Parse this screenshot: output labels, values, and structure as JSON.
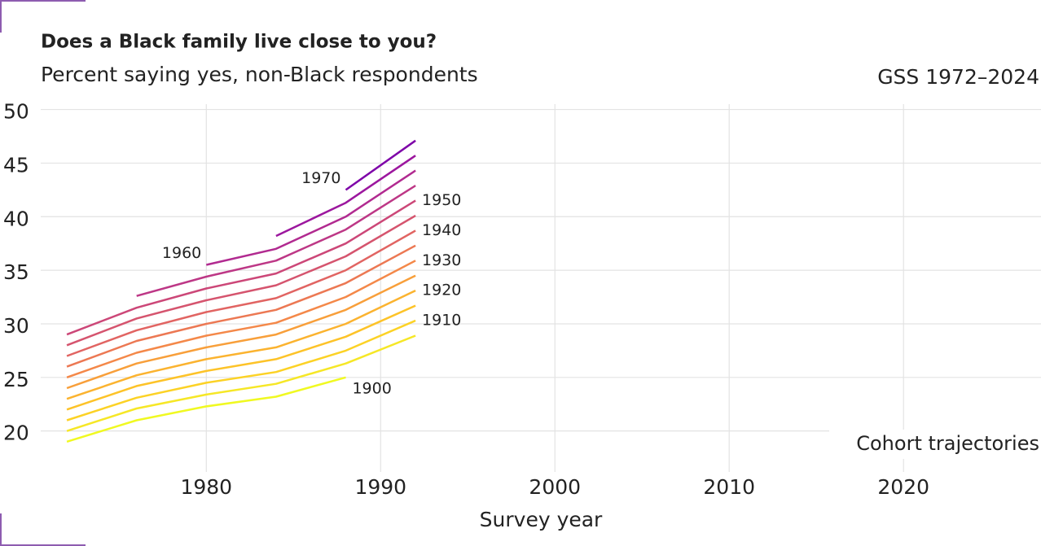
{
  "chart_data": {
    "type": "line",
    "title": "Does a Black family live close to you?",
    "subtitle": "Percent saying yes, non-Black respondents",
    "source": "GSS 1972–2024",
    "caption": "Cohort trajectories",
    "x_label": "Survey year",
    "x": [
      1972,
      1976,
      1980,
      1984,
      1988,
      1992
    ],
    "xlim": [
      1970.5,
      2027
    ],
    "xticks": [
      1980,
      1990,
      2000,
      2010,
      2020
    ],
    "ylim": [
      18,
      50.5
    ],
    "yticks": [
      20,
      25,
      30,
      35,
      40,
      45,
      50
    ],
    "grid": true,
    "series": [
      {
        "name": "1900",
        "color": "#f0f921",
        "values": [
          19,
          21,
          22.3,
          23.2,
          25,
          null
        ]
      },
      {
        "color": "#f6e726",
        "values": [
          20,
          22.1,
          23.4,
          24.4,
          26.3,
          28.9
        ]
      },
      {
        "name": "1910",
        "color": "#fcd225",
        "values": [
          21,
          23.1,
          24.5,
          25.5,
          27.5,
          30.3
        ]
      },
      {
        "color": "#fdc328",
        "values": [
          22,
          24.2,
          25.6,
          26.7,
          28.8,
          31.7
        ]
      },
      {
        "name": "1920",
        "color": "#fbb32f",
        "values": [
          23,
          25.2,
          26.7,
          27.8,
          30,
          33.1
        ]
      },
      {
        "color": "#f89f3a",
        "values": [
          24,
          26.3,
          27.8,
          29,
          31.3,
          34.5
        ]
      },
      {
        "name": "1930",
        "color": "#f48849",
        "values": [
          25,
          27.3,
          28.9,
          30.1,
          32.5,
          35.9
        ]
      },
      {
        "color": "#ec7853",
        "values": [
          26,
          28.4,
          30,
          31.3,
          33.8,
          37.3
        ]
      },
      {
        "name": "1940",
        "color": "#e16462",
        "values": [
          27,
          29.4,
          31.1,
          32.4,
          35,
          38.7
        ]
      },
      {
        "color": "#d5546e",
        "values": [
          28,
          30.5,
          32.2,
          33.6,
          36.3,
          40.1
        ]
      },
      {
        "name": "1950",
        "color": "#cc4778",
        "values": [
          29,
          31.5,
          33.3,
          34.7,
          37.5,
          41.5
        ]
      },
      {
        "color": "#bd3786",
        "values": [
          null,
          32.6,
          34.4,
          35.9,
          38.8,
          42.9
        ]
      },
      {
        "name": "1960",
        "color": "#b12a90",
        "values": [
          null,
          null,
          35.5,
          37,
          40,
          44.3
        ]
      },
      {
        "color": "#9c179e",
        "values": [
          null,
          null,
          null,
          38.2,
          41.3,
          45.7
        ]
      },
      {
        "name": "1970",
        "color": "#7e03a8",
        "values": [
          null,
          null,
          null,
          null,
          42.5,
          47.1
        ]
      }
    ]
  }
}
